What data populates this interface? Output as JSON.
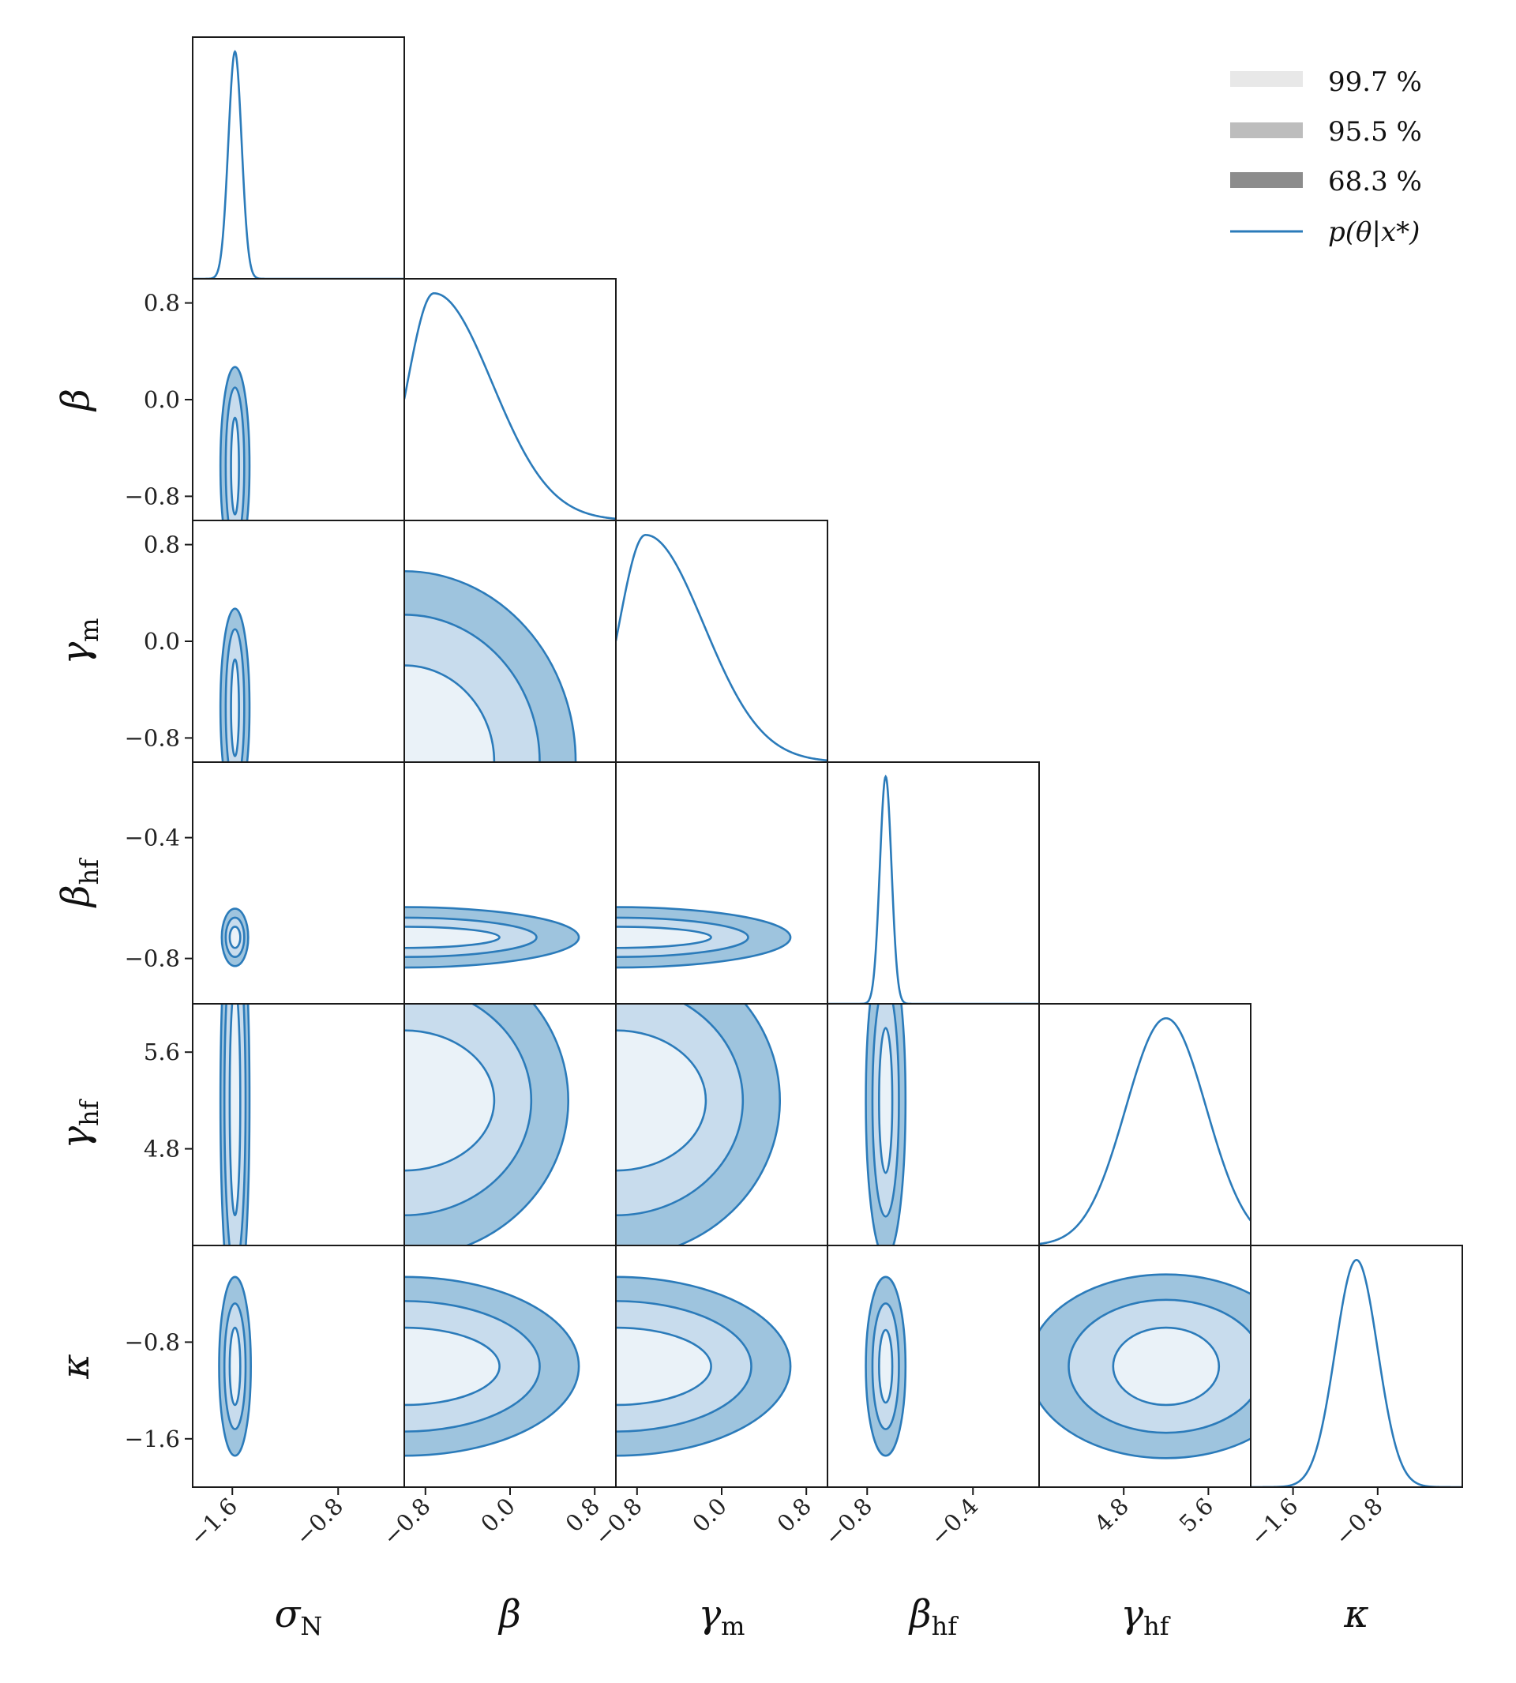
{
  "chart_data": {
    "type": "corner",
    "parameters": [
      {
        "key": "sigma_N",
        "label": "σ",
        "sub": "N",
        "range": [
          -1.9,
          -0.3
        ],
        "ticks": [
          -1.6,
          -0.8
        ],
        "tick_labels": [
          "−1.6",
          "−0.8"
        ]
      },
      {
        "key": "beta",
        "label": "β",
        "sub": "",
        "range": [
          -1.0,
          1.0
        ],
        "ticks": [
          -0.8,
          0.0,
          0.8
        ],
        "tick_labels": [
          "−0.8",
          "0.0",
          "0.8"
        ]
      },
      {
        "key": "gamma_m",
        "label": "γ",
        "sub": "m",
        "range": [
          -1.0,
          1.0
        ],
        "ticks": [
          -0.8,
          0.0,
          0.8
        ],
        "tick_labels": [
          "−0.8",
          "0.0",
          "0.8"
        ]
      },
      {
        "key": "beta_hf",
        "label": "β",
        "sub": "hf",
        "range": [
          -0.95,
          -0.15
        ],
        "ticks": [
          -0.8,
          -0.4
        ],
        "tick_labels": [
          "−0.8",
          "−0.4"
        ]
      },
      {
        "key": "gamma_hf",
        "label": "γ",
        "sub": "hf",
        "range": [
          4.0,
          6.0
        ],
        "ticks": [
          4.8,
          5.6
        ],
        "tick_labels": [
          "4.8",
          "5.6"
        ]
      },
      {
        "key": "kappa",
        "label": "κ",
        "sub": "",
        "range": [
          -2.0,
          0.0
        ],
        "ticks": [
          -1.6,
          -0.8
        ],
        "tick_labels": [
          "−1.6",
          "−0.8"
        ]
      }
    ],
    "marginals": [
      {
        "param": "sigma_N",
        "mode": -1.58,
        "sd": 0.05
      },
      {
        "param": "beta",
        "mode": -0.72,
        "sd_left": 0.25,
        "sd_right": 0.55,
        "trunc": -1.0
      },
      {
        "param": "gamma_m",
        "mode": -0.72,
        "sd_left": 0.25,
        "sd_right": 0.55,
        "trunc": -1.0
      },
      {
        "param": "beta_hf",
        "mode": -0.73,
        "sd": 0.022
      },
      {
        "param": "gamma_hf",
        "mode": 5.2,
        "sd": 0.38
      },
      {
        "param": "kappa",
        "mode": -1.0,
        "sd": 0.2
      }
    ],
    "contours": [
      {
        "row": 1,
        "col": 0,
        "cx": -1.58,
        "cy": -0.55,
        "rx": [
          0.03,
          0.07,
          0.11
        ],
        "ry": [
          0.4,
          0.65,
          0.82
        ],
        "clip_bottom": true
      },
      {
        "row": 2,
        "col": 0,
        "cx": -1.58,
        "cy": -0.55,
        "rx": [
          0.03,
          0.07,
          0.11
        ],
        "ry": [
          0.4,
          0.65,
          0.82
        ],
        "clip_bottom": true
      },
      {
        "row": 2,
        "col": 1,
        "cx": -1.0,
        "cy": -1.0,
        "rx": [
          0.85,
          1.28,
          1.62
        ],
        "ry": [
          0.8,
          1.22,
          1.58
        ]
      },
      {
        "row": 3,
        "col": 0,
        "cx": -1.58,
        "cy": -0.73,
        "rx": [
          0.04,
          0.07,
          0.1
        ],
        "ry": [
          0.035,
          0.065,
          0.095
        ]
      },
      {
        "row": 3,
        "col": 1,
        "cx": -1.0,
        "cy": -0.73,
        "rx": [
          0.9,
          1.25,
          1.65
        ],
        "ry": [
          0.035,
          0.065,
          0.1
        ]
      },
      {
        "row": 3,
        "col": 2,
        "cx": -1.0,
        "cy": -0.73,
        "rx": [
          0.9,
          1.25,
          1.65
        ],
        "ry": [
          0.035,
          0.065,
          0.1
        ]
      },
      {
        "row": 4,
        "col": 0,
        "cx": -1.58,
        "cy": 5.2,
        "rx": [
          0.04,
          0.08,
          0.11
        ],
        "ry": [
          0.95,
          1.4,
          1.8
        ]
      },
      {
        "row": 4,
        "col": 1,
        "cx": -1.0,
        "cy": 5.2,
        "rx": [
          0.85,
          1.2,
          1.55
        ],
        "ry": [
          0.58,
          0.95,
          1.3
        ]
      },
      {
        "row": 4,
        "col": 2,
        "cx": -1.0,
        "cy": 5.2,
        "rx": [
          0.85,
          1.2,
          1.55
        ],
        "ry": [
          0.58,
          0.95,
          1.3
        ]
      },
      {
        "row": 4,
        "col": 3,
        "cx": -0.73,
        "cy": 5.2,
        "rx": [
          0.025,
          0.05,
          0.075
        ],
        "ry": [
          0.6,
          0.96,
          1.3
        ]
      },
      {
        "row": 5,
        "col": 0,
        "cx": -1.58,
        "cy": -1.0,
        "rx": [
          0.04,
          0.08,
          0.12
        ],
        "ry": [
          0.32,
          0.52,
          0.74
        ]
      },
      {
        "row": 5,
        "col": 1,
        "cx": -1.0,
        "cy": -1.0,
        "rx": [
          0.9,
          1.28,
          1.65
        ],
        "ry": [
          0.32,
          0.54,
          0.74
        ]
      },
      {
        "row": 5,
        "col": 2,
        "cx": -1.0,
        "cy": -1.0,
        "rx": [
          0.9,
          1.28,
          1.65
        ],
        "ry": [
          0.32,
          0.54,
          0.74
        ]
      },
      {
        "row": 5,
        "col": 3,
        "cx": -0.73,
        "cy": -1.0,
        "rx": [
          0.025,
          0.05,
          0.075
        ],
        "ry": [
          0.3,
          0.52,
          0.74
        ]
      },
      {
        "row": 5,
        "col": 4,
        "cx": 5.2,
        "cy": -1.0,
        "rx": [
          0.5,
          0.92,
          1.3
        ],
        "ry": [
          0.32,
          0.55,
          0.76
        ]
      }
    ],
    "legend": {
      "position": "top-right",
      "entries": [
        {
          "label": "99.7 %",
          "color": "#e8e8e8"
        },
        {
          "label": "95.5 %",
          "color": "#bdbdbd"
        },
        {
          "label": "68.3 %",
          "color": "#8c8c8c"
        }
      ],
      "line_label": "p(θ|x*)",
      "line_color": "#2b7bba"
    }
  },
  "colors": {
    "line": "#2b7bba",
    "fills": [
      "#eaf2f8",
      "#c8dced",
      "#9ec4de"
    ],
    "frame": "#1a1a1a"
  }
}
